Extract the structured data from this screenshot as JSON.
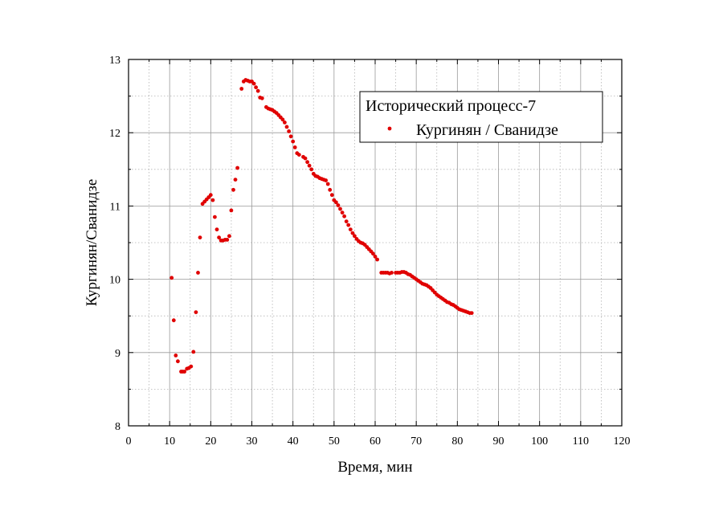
{
  "chart_data": {
    "type": "scatter",
    "xlabel": "Время, мин",
    "ylabel": "Кургинян/Сванидзе",
    "xlim": [
      0,
      120
    ],
    "ylim": [
      8,
      13
    ],
    "xticks": [
      0,
      10,
      20,
      30,
      40,
      50,
      60,
      70,
      80,
      90,
      100,
      110,
      120
    ],
    "yticks": [
      8,
      9,
      10,
      11,
      12,
      13
    ],
    "grid": "major solid, minor dotted",
    "legend": {
      "title": "Исторический процесс-7",
      "position": "top-right"
    },
    "series": [
      {
        "name": "Кургинян / Сванидзе",
        "color": "#e00000",
        "marker": "circle",
        "points": [
          [
            10.5,
            10.02
          ],
          [
            11.0,
            9.44
          ],
          [
            11.5,
            8.96
          ],
          [
            12.0,
            8.88
          ],
          [
            12.8,
            8.74
          ],
          [
            13.2,
            8.74
          ],
          [
            13.6,
            8.74
          ],
          [
            14.2,
            8.78
          ],
          [
            14.7,
            8.79
          ],
          [
            15.2,
            8.81
          ],
          [
            15.8,
            9.01
          ],
          [
            16.4,
            9.55
          ],
          [
            16.9,
            10.09
          ],
          [
            17.4,
            10.57
          ],
          [
            18.0,
            11.03
          ],
          [
            18.5,
            11.06
          ],
          [
            19.0,
            11.09
          ],
          [
            19.5,
            11.12
          ],
          [
            20.0,
            11.15
          ],
          [
            20.5,
            11.08
          ],
          [
            21.0,
            10.85
          ],
          [
            21.5,
            10.68
          ],
          [
            22.0,
            10.57
          ],
          [
            22.5,
            10.53
          ],
          [
            23.0,
            10.53
          ],
          [
            23.5,
            10.54
          ],
          [
            24.0,
            10.54
          ],
          [
            24.5,
            10.59
          ],
          [
            25.0,
            10.94
          ],
          [
            25.5,
            11.22
          ],
          [
            26.0,
            11.36
          ],
          [
            26.5,
            11.52
          ],
          [
            27.5,
            12.6
          ],
          [
            28.0,
            12.7
          ],
          [
            28.5,
            12.72
          ],
          [
            29.0,
            12.71
          ],
          [
            29.5,
            12.7
          ],
          [
            30.0,
            12.7
          ],
          [
            30.5,
            12.67
          ],
          [
            31.0,
            12.62
          ],
          [
            31.5,
            12.57
          ],
          [
            32.0,
            12.48
          ],
          [
            32.5,
            12.47
          ],
          [
            33.5,
            12.35
          ],
          [
            34.0,
            12.33
          ],
          [
            34.5,
            12.32
          ],
          [
            35.0,
            12.31
          ],
          [
            35.5,
            12.29
          ],
          [
            36.0,
            12.27
          ],
          [
            36.5,
            12.24
          ],
          [
            37.0,
            12.21
          ],
          [
            37.5,
            12.18
          ],
          [
            38.0,
            12.14
          ],
          [
            38.5,
            12.08
          ],
          [
            39.0,
            12.02
          ],
          [
            39.5,
            11.95
          ],
          [
            40.0,
            11.88
          ],
          [
            40.5,
            11.8
          ],
          [
            41.0,
            11.72
          ],
          [
            41.5,
            11.7
          ],
          [
            42.5,
            11.67
          ],
          [
            43.0,
            11.65
          ],
          [
            43.5,
            11.6
          ],
          [
            44.0,
            11.55
          ],
          [
            44.5,
            11.5
          ],
          [
            45.0,
            11.44
          ],
          [
            45.5,
            11.41
          ],
          [
            46.0,
            11.4
          ],
          [
            46.5,
            11.38
          ],
          [
            47.0,
            11.37
          ],
          [
            47.5,
            11.36
          ],
          [
            48.0,
            11.35
          ],
          [
            48.5,
            11.3
          ],
          [
            49.0,
            11.22
          ],
          [
            49.5,
            11.15
          ],
          [
            50.0,
            11.08
          ],
          [
            50.5,
            11.05
          ],
          [
            51.0,
            11.01
          ],
          [
            51.5,
            10.96
          ],
          [
            52.0,
            10.91
          ],
          [
            52.5,
            10.86
          ],
          [
            53.0,
            10.79
          ],
          [
            53.5,
            10.74
          ],
          [
            54.0,
            10.68
          ],
          [
            54.5,
            10.63
          ],
          [
            55.0,
            10.59
          ],
          [
            55.5,
            10.55
          ],
          [
            56.0,
            10.52
          ],
          [
            56.5,
            10.5
          ],
          [
            57.0,
            10.49
          ],
          [
            57.5,
            10.47
          ],
          [
            58.0,
            10.44
          ],
          [
            58.5,
            10.41
          ],
          [
            59.0,
            10.38
          ],
          [
            59.5,
            10.35
          ],
          [
            60.0,
            10.31
          ],
          [
            60.5,
            10.27
          ],
          [
            61.5,
            10.09
          ],
          [
            62.0,
            10.09
          ],
          [
            62.5,
            10.09
          ],
          [
            63.0,
            10.09
          ],
          [
            63.5,
            10.08
          ],
          [
            64.0,
            10.09
          ],
          [
            65.0,
            10.09
          ],
          [
            65.5,
            10.09
          ],
          [
            66.0,
            10.09
          ],
          [
            66.5,
            10.1
          ],
          [
            67.0,
            10.1
          ],
          [
            67.5,
            10.09
          ],
          [
            68.0,
            10.07
          ],
          [
            68.5,
            10.06
          ],
          [
            69.0,
            10.04
          ],
          [
            69.5,
            10.02
          ],
          [
            70.0,
            10.0
          ],
          [
            70.5,
            9.98
          ],
          [
            71.0,
            9.96
          ],
          [
            71.5,
            9.94
          ],
          [
            72.0,
            9.93
          ],
          [
            72.5,
            9.92
          ],
          [
            73.0,
            9.9
          ],
          [
            73.5,
            9.88
          ],
          [
            74.0,
            9.85
          ],
          [
            74.5,
            9.82
          ],
          [
            75.0,
            9.79
          ],
          [
            75.5,
            9.77
          ],
          [
            76.0,
            9.75
          ],
          [
            76.5,
            9.73
          ],
          [
            77.0,
            9.71
          ],
          [
            77.5,
            9.69
          ],
          [
            78.0,
            9.68
          ],
          [
            78.5,
            9.66
          ],
          [
            79.0,
            9.65
          ],
          [
            79.5,
            9.63
          ],
          [
            80.0,
            9.61
          ],
          [
            80.5,
            9.59
          ],
          [
            81.0,
            9.58
          ],
          [
            81.5,
            9.57
          ],
          [
            82.0,
            9.56
          ],
          [
            82.5,
            9.55
          ],
          [
            83.0,
            9.54
          ],
          [
            83.5,
            9.54
          ]
        ]
      }
    ]
  }
}
